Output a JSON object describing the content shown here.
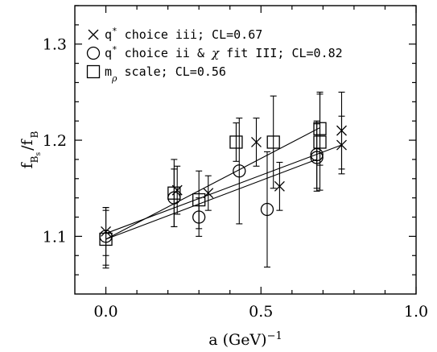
{
  "chart_data": {
    "type": "scatter",
    "xlim": [
      -0.1,
      1.0
    ],
    "ylim": [
      1.04,
      1.34
    ],
    "x_ticks": [
      0.0,
      0.5,
      1.0
    ],
    "x_tick_labels": [
      "0.0",
      "0.5",
      "1.0"
    ],
    "y_ticks": [
      1.1,
      1.2,
      1.3
    ],
    "y_tick_labels": [
      "1.1",
      "1.2",
      "1.3"
    ],
    "xlabel": {
      "base": "a  (GeV)",
      "sup": "−1"
    },
    "ylabel": {
      "f1": "f",
      "sub1": "B",
      "subsub": "s",
      "slash": "/",
      "f2": "f",
      "sub2": "B"
    },
    "grid": false,
    "legend_position": "top-left",
    "series": [
      {
        "marker": "cross",
        "legend": {
          "a": "q",
          "sup": "*",
          "b": " choice iii; CL=0.67"
        },
        "points": [
          {
            "x": 0.0,
            "y": 1.105,
            "err": 0.025
          },
          {
            "x": 0.23,
            "y": 1.148,
            "err": 0.025
          },
          {
            "x": 0.33,
            "y": 1.145,
            "err": 0.018
          },
          {
            "x": 0.485,
            "y": 1.198,
            "err": 0.025
          },
          {
            "x": 0.56,
            "y": 1.152,
            "err": 0.025
          },
          {
            "x": 0.76,
            "y": 1.21,
            "err": 0.04
          },
          {
            "x": 0.76,
            "y": 1.195,
            "err": 0.03
          }
        ],
        "fit": [
          [
            0.0,
            1.103
          ],
          [
            0.76,
            1.195
          ]
        ]
      },
      {
        "marker": "circle",
        "legend": {
          "a": "q",
          "sup": "*",
          "b": " choice ii & ",
          "chi": "χ",
          "c": " fit III; CL=0.82"
        },
        "points": [
          {
            "x": 0.0,
            "y": 1.1,
            "err": 0.03
          },
          {
            "x": 0.22,
            "y": 1.14,
            "err": 0.03
          },
          {
            "x": 0.3,
            "y": 1.12,
            "err": 0.02
          },
          {
            "x": 0.43,
            "y": 1.168,
            "err": 0.055
          },
          {
            "x": 0.52,
            "y": 1.128,
            "err": 0.06
          },
          {
            "x": 0.68,
            "y": 1.182,
            "err": 0.035
          },
          {
            "x": 0.68,
            "y": 1.185,
            "err": 0.035
          }
        ],
        "fit": [
          [
            0.0,
            1.097
          ],
          [
            0.68,
            1.18
          ]
        ]
      },
      {
        "marker": "square",
        "legend": {
          "a": "m",
          "sub": "ρ",
          "b": " scale; CL=0.56"
        },
        "points": [
          {
            "x": 0.0,
            "y": 1.097,
            "err": 0.03
          },
          {
            "x": 0.22,
            "y": 1.145,
            "err": 0.035
          },
          {
            "x": 0.3,
            "y": 1.138,
            "err": 0.03
          },
          {
            "x": 0.42,
            "y": 1.198,
            "err": 0.02
          },
          {
            "x": 0.54,
            "y": 1.198,
            "err": 0.048
          },
          {
            "x": 0.69,
            "y": 1.212,
            "err": 0.038
          },
          {
            "x": 0.69,
            "y": 1.198,
            "err": 0.05
          }
        ],
        "fit": [
          [
            0.0,
            1.097
          ],
          [
            0.69,
            1.213
          ]
        ]
      }
    ]
  }
}
